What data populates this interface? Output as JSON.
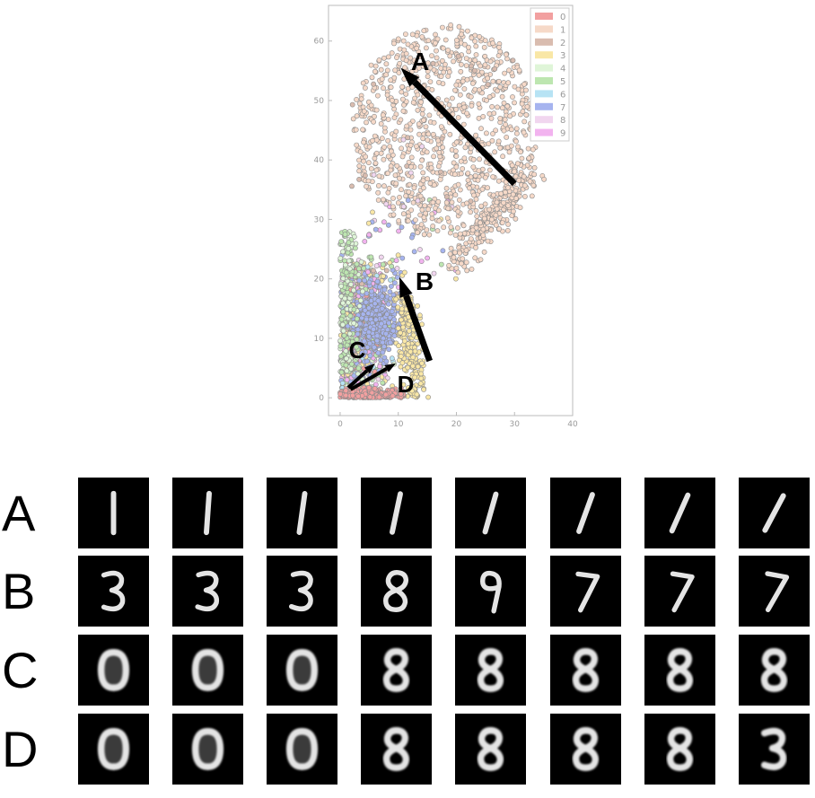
{
  "chart_data": {
    "type": "scatter",
    "xlim": [
      -2,
      40
    ],
    "ylim": [
      -3,
      66
    ],
    "xticks": [
      0,
      10,
      20,
      30,
      40
    ],
    "yticks": [
      0,
      10,
      20,
      30,
      40,
      50,
      60
    ],
    "grid": false,
    "legend_placement": "top-right",
    "series": [
      {
        "name": "0",
        "color": "#f2a0a0"
      },
      {
        "name": "1",
        "color": "#f6d9c8"
      },
      {
        "name": "2",
        "color": "#d9bcaf"
      },
      {
        "name": "3",
        "color": "#f9e7a6"
      },
      {
        "name": "4",
        "color": "#dff5d8"
      },
      {
        "name": "5",
        "color": "#bde6b0"
      },
      {
        "name": "6",
        "color": "#b7e3f4"
      },
      {
        "name": "7",
        "color": "#a6b4ef"
      },
      {
        "name": "8",
        "color": "#f1d6ef"
      },
      {
        "name": "9",
        "color": "#f2b3ef"
      }
    ],
    "arrows": [
      {
        "label": "A",
        "from": [
          30,
          36
        ],
        "to": [
          10.4,
          55.5
        ]
      },
      {
        "label": "B",
        "from": [
          15.4,
          6.2
        ],
        "to": [
          10.2,
          20.3
        ]
      },
      {
        "label": "C",
        "from": [
          1.4,
          1.7
        ],
        "to": [
          6.0,
          5.8
        ]
      },
      {
        "label": "D",
        "from": [
          1.8,
          1.4
        ],
        "to": [
          9.6,
          5.8
        ]
      }
    ]
  },
  "rows": [
    {
      "label": "A",
      "digits": [
        "1",
        "1",
        "1",
        "1",
        "1",
        "1",
        "1",
        "1"
      ]
    },
    {
      "label": "B",
      "digits": [
        "3",
        "3",
        "3",
        "8",
        "9",
        "7",
        "7",
        "7"
      ]
    },
    {
      "label": "C",
      "digits": [
        "0",
        "0",
        "0",
        "8",
        "8",
        "8",
        "8",
        "8"
      ]
    },
    {
      "label": "D",
      "digits": [
        "0",
        "0",
        "0",
        "8",
        "8",
        "8",
        "8",
        "3"
      ]
    }
  ]
}
